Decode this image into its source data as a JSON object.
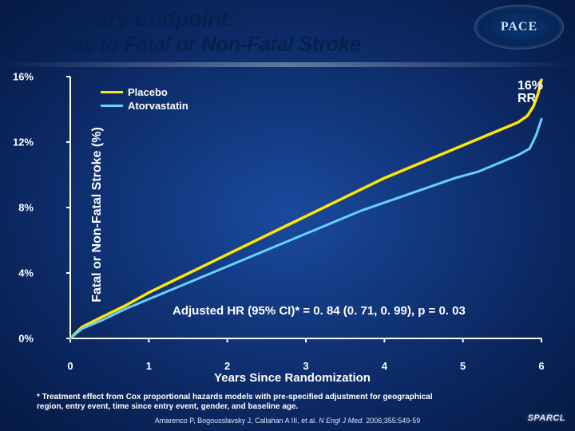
{
  "title": "Primary Endpoint:",
  "subtitle": "Time to Fatal or Non-Fatal Stroke",
  "logo_text": "PACE",
  "chart": {
    "type": "line",
    "ylabel": "Fatal or Non-Fatal Stroke (%)",
    "xlabel": "Years Since Randomization",
    "xlim": [
      0,
      6
    ],
    "ylim": [
      0,
      16
    ],
    "xtick_step": 1,
    "xticks": [
      "0",
      "1",
      "2",
      "3",
      "4",
      "5",
      "6"
    ],
    "yticks": [
      "0%",
      "4%",
      "8%",
      "12%",
      "16%"
    ],
    "series": [
      {
        "name": "Placebo",
        "color": "#ffe600",
        "width": 3.5,
        "x": [
          0.0,
          0.15,
          0.4,
          0.7,
          1.0,
          1.3,
          1.6,
          1.9,
          2.2,
          2.5,
          2.8,
          3.1,
          3.4,
          3.7,
          4.0,
          4.3,
          4.6,
          4.9,
          5.2,
          5.45,
          5.7,
          5.82,
          5.9,
          5.96,
          6.0
        ],
        "y": [
          0.0,
          0.7,
          1.3,
          2.0,
          2.8,
          3.5,
          4.2,
          4.9,
          5.6,
          6.3,
          7.0,
          7.7,
          8.4,
          9.1,
          9.8,
          10.4,
          11.0,
          11.6,
          12.2,
          12.7,
          13.2,
          13.6,
          14.2,
          15.0,
          15.8
        ]
      },
      {
        "name": "Atorvastatin",
        "color": "#66d1ff",
        "width": 3.0,
        "x": [
          0.0,
          0.15,
          0.4,
          0.7,
          1.0,
          1.3,
          1.6,
          1.9,
          2.2,
          2.5,
          2.8,
          3.1,
          3.4,
          3.7,
          4.0,
          4.3,
          4.6,
          4.9,
          5.2,
          5.45,
          5.7,
          5.85,
          5.93,
          6.0
        ],
        "y": [
          0.0,
          0.6,
          1.1,
          1.8,
          2.4,
          3.0,
          3.6,
          4.2,
          4.8,
          5.4,
          6.0,
          6.6,
          7.2,
          7.8,
          8.3,
          8.8,
          9.3,
          9.8,
          10.2,
          10.7,
          11.2,
          11.6,
          12.4,
          13.4
        ]
      }
    ],
    "rr_value": "16%",
    "rr_suffix": "RR",
    "hr_text": "Adjusted HR (95% CI)* = 0. 84 (0. 71, 0. 99), p = 0. 03",
    "background_color": "transparent",
    "axis_color": "#ffffff",
    "tick_len": 5
  },
  "legend": {
    "items": [
      {
        "label": "Placebo"
      },
      {
        "label": "Atorvastatin"
      }
    ]
  },
  "footnote": "* Treatment effect from Cox proportional hazards models with pre-specified adjustment for geographical region, entry event, time since entry event, gender, and baseline age.",
  "citation_pre": "Amarenco P, Bogousslavsky J, Callahan A III, et al. ",
  "citation_ital": "N Engl J Med.",
  "citation_post": " 2006;355:549-59",
  "sparcl": "SPARCL"
}
